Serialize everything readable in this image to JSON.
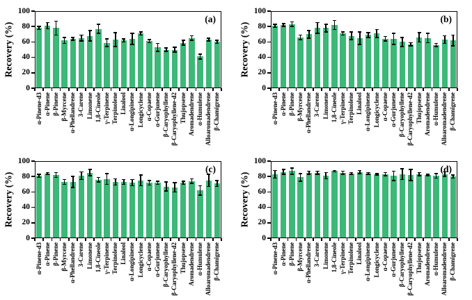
{
  "figure": {
    "ylabel": "Recovery (%)",
    "bar_color": "#3CB878",
    "error_color": "#000000",
    "axis_color": "#000000",
    "panel_labels": [
      "(a)",
      "(b)",
      "(c)",
      "(d)"
    ]
  },
  "chart_data": [
    {
      "type": "bar",
      "panel": "(a)",
      "title": "",
      "xlabel": "",
      "ylabel": "Recovery (%)",
      "ylim": [
        0,
        100
      ],
      "yticks": [
        0,
        20,
        40,
        60,
        80,
        100
      ],
      "grid": false,
      "legend": "none",
      "categories": [
        "α-Pinene-d3",
        "α-Pinene",
        "β-Pinene",
        "β-Myrcene",
        "α-Phellandrene",
        "3-Carene",
        "Limonene",
        "1,8-Cineole",
        "γ-Terpinene",
        "Terpinolene",
        "Linalool",
        "α-Longipinene",
        "Longicyclene",
        "α-Copaene",
        "α-Gurjunene",
        "β-Caryophyllene",
        "β-Caryophyllene-d2",
        "Thujopsene",
        "Aromadendrene",
        "α-Humulene",
        "Alloaromadendrene",
        "β-Chamigrene"
      ],
      "values": [
        78,
        81,
        78,
        62,
        64,
        65,
        68,
        77,
        59,
        63,
        62,
        64,
        71,
        61,
        53,
        50,
        50,
        59,
        65,
        41,
        63,
        60
      ],
      "errors": [
        2,
        4,
        9,
        4,
        2,
        4,
        7,
        6,
        5,
        9,
        2,
        7,
        2,
        2,
        5,
        2,
        3,
        3,
        3,
        3,
        2,
        2
      ]
    },
    {
      "type": "bar",
      "panel": "(b)",
      "title": "",
      "xlabel": "",
      "ylabel": "Recovery (%)",
      "ylim": [
        0,
        100
      ],
      "yticks": [
        0,
        20,
        40,
        60,
        80,
        100
      ],
      "grid": false,
      "legend": "none",
      "categories": [
        "α-Pinene-d3",
        "α-Pinene",
        "β-Pinene",
        "β-Myrcene",
        "α-Phellandrene",
        "3-Carene",
        "Limonene",
        "1,8-Cineole",
        "γ-Terpinene",
        "Terpinolene",
        "Linalool",
        "α-Longipinene",
        "Longicyclene",
        "α-Copaene",
        "α-Gurjunene",
        "β-Caryophyllene",
        "β-Caryophyllene-d2",
        "Thujopsene",
        "Aromadendrene",
        "α-Humulene",
        "Alloaromadendrene",
        "β-Chamigrene"
      ],
      "values": [
        81,
        82,
        83,
        66,
        70,
        78,
        78,
        82,
        71,
        68,
        65,
        69,
        71,
        64,
        64,
        60,
        57,
        66,
        65,
        56,
        63,
        62
      ],
      "errors": [
        2,
        2,
        3,
        3,
        5,
        7,
        5,
        6,
        2,
        5,
        8,
        3,
        5,
        3,
        7,
        6,
        2,
        6,
        6,
        2,
        5,
        7
      ]
    },
    {
      "type": "bar",
      "panel": "(c)",
      "title": "",
      "xlabel": "",
      "ylabel": "Recovery (%)",
      "ylim": [
        0,
        100
      ],
      "yticks": [
        0,
        20,
        40,
        60,
        80,
        100
      ],
      "grid": false,
      "legend": "none",
      "categories": [
        "α-Pinene-d3",
        "α-Pinene",
        "β-Pinene",
        "β-Myrcene",
        "α-Phellandrene",
        "3-Carene",
        "Limonene",
        "1,8-Cineole",
        "γ-Terpinene",
        "Terpinolene",
        "Linalool",
        "α-Longipinene",
        "Longicyclene",
        "α-Copaene",
        "α-Gurjunene",
        "β-Caryophyllene",
        "β-Caryophyllene-d2",
        "Thujopsene",
        "Aromadendrene",
        "α-Humulene",
        "Alloaromadendrene",
        "β-Chamigrene"
      ],
      "values": [
        81,
        84,
        82,
        73,
        73,
        81,
        85,
        76,
        77,
        73,
        73,
        72,
        75,
        72,
        72,
        67,
        66,
        72,
        74,
        62,
        75,
        71
      ],
      "errors": [
        2,
        1,
        3,
        3,
        7,
        5,
        4,
        3,
        7,
        4,
        3,
        4,
        7,
        3,
        2,
        6,
        6,
        2,
        3,
        6,
        8,
        4
      ]
    },
    {
      "type": "bar",
      "panel": "(d)",
      "title": "",
      "xlabel": "",
      "ylabel": "Recovery (%)",
      "ylim": [
        0,
        100
      ],
      "yticks": [
        0,
        20,
        40,
        60,
        80,
        100
      ],
      "grid": false,
      "legend": "none",
      "categories": [
        "α-Pinene-d3",
        "α-Pinene",
        "β-Pinene",
        "β-Myrcene",
        "α-Phellandrene",
        "3-Carene",
        "Limonene",
        "1,8-Cineole",
        "γ-Terpinene",
        "Terpinolene",
        "Linalool",
        "α-Longipinene",
        "Longicyclene",
        "α-Copaene",
        "α-Gurjunene",
        "β-Caryophyllene",
        "β-Caryophyllene-d2",
        "Thujopsene",
        "Aromadendrene",
        "α-Humulene",
        "Alloaromadendrene",
        "β-Chamigrene"
      ],
      "values": [
        83,
        86,
        87,
        79,
        85,
        85,
        81,
        87,
        85,
        84,
        86,
        84,
        83,
        83,
        81,
        83,
        82,
        83,
        82,
        81,
        83,
        80
      ],
      "errors": [
        5,
        3,
        4,
        5,
        2,
        2,
        4,
        1,
        2,
        1,
        2,
        1,
        1,
        2,
        6,
        7,
        7,
        2,
        1,
        3,
        3,
        2
      ]
    }
  ]
}
